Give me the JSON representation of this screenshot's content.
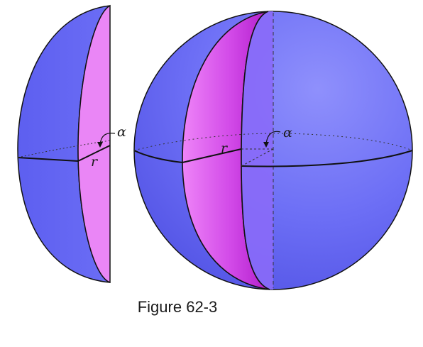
{
  "labels": {
    "wedge_angle": "α",
    "wedge_radius": "r",
    "sphere_radius": "r",
    "sphere_angle": "α"
  },
  "caption": "Figure 62-3",
  "colors": {
    "sphere_blue": "#6a6cf6",
    "sphere_blue_dark": "#4e4fe6",
    "wedge_pink": "#e883f5",
    "wedge_magenta": "#c02ad8",
    "outline": "#111111"
  }
}
